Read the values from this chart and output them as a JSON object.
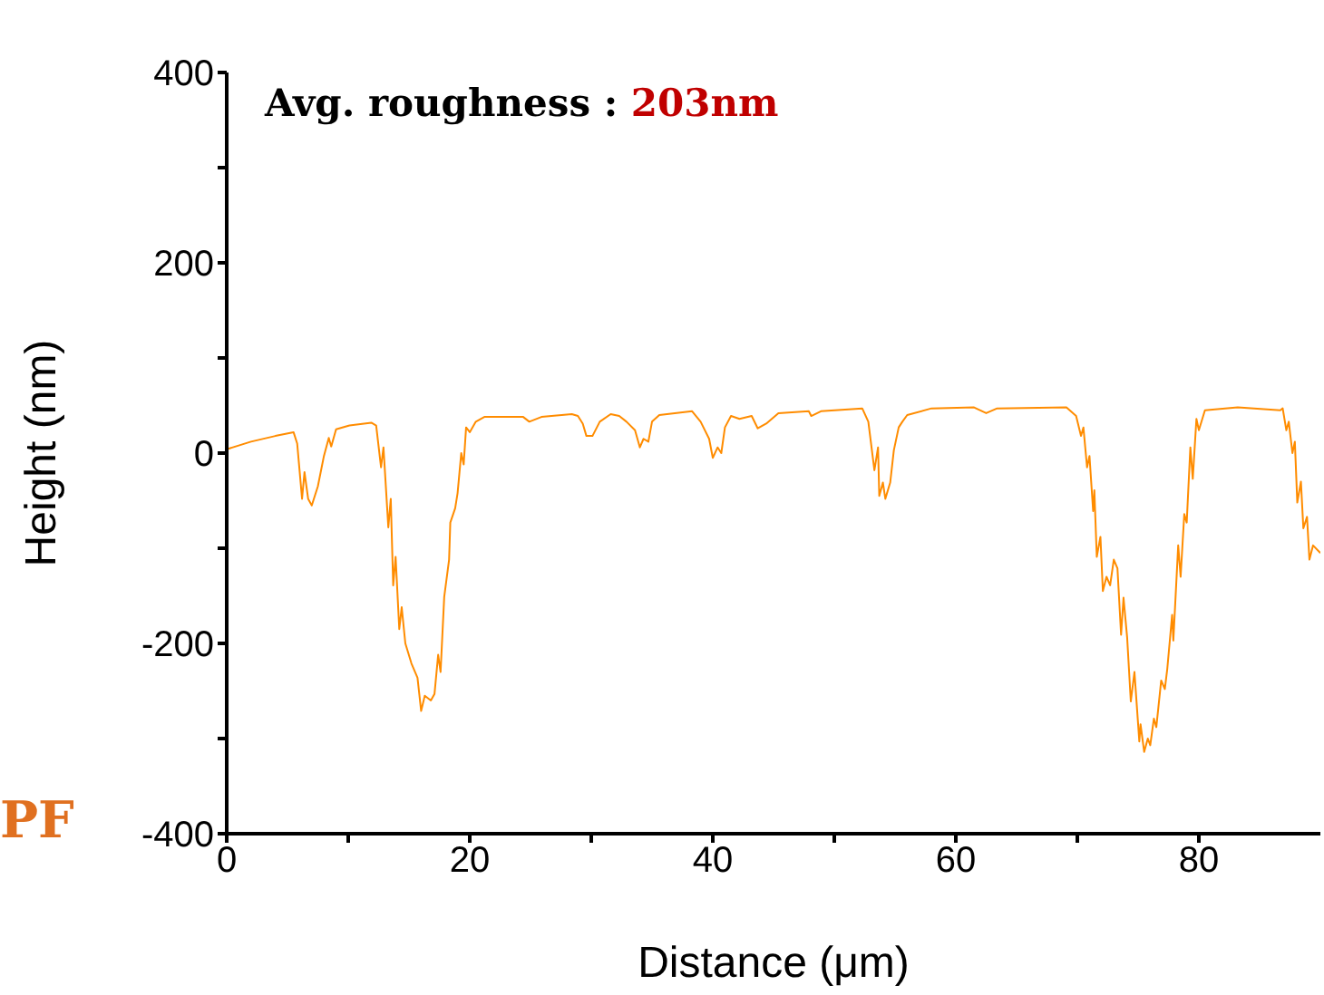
{
  "chart_data": {
    "type": "line",
    "xlabel": "Distance (μm)",
    "ylabel": "Height (nm)",
    "annotations": [
      "Avg. roughness :",
      "203nm",
      "PF"
    ],
    "xlim": [
      0,
      90
    ],
    "xticks": [
      0,
      {
        "value": 10,
        "label": null
      },
      20,
      {
        "value": 30,
        "label": null
      },
      40,
      {
        "value": 50,
        "label": null
      },
      60,
      {
        "value": 70,
        "label": null
      },
      80
    ],
    "ylim": [
      -400,
      400
    ],
    "yticks": [
      -400,
      {
        "value": -300,
        "label": null
      },
      -200,
      {
        "value": -100,
        "label": null
      },
      0,
      {
        "value": 100,
        "label": null
      },
      200,
      {
        "value": 300,
        "label": null
      },
      400
    ],
    "marker": "none",
    "line_style": "solid",
    "series": [
      {
        "color": "#ff8c00",
        "x": [
          0,
          2,
          4,
          5.5,
          5.8,
          6.2,
          6.4,
          6.7,
          7.0,
          7.5,
          8.0,
          8.4,
          8.6,
          9.0,
          10.1,
          11.9,
          12.3,
          12.7,
          12.9,
          13.3,
          13.5,
          13.7,
          13.9,
          14.2,
          14.4,
          14.7,
          15.2,
          15.7,
          16.0,
          16.3,
          16.8,
          17.1,
          17.4,
          17.6,
          17.9,
          18.3,
          18.4,
          18.8,
          19.0,
          19.3,
          19.5,
          19.7,
          20.0,
          20.5,
          21.2,
          24.4,
          24.9,
          25.9,
          28.4,
          28.9,
          29.3,
          29.6,
          30.1,
          30.7,
          31.6,
          32.3,
          32.9,
          33.6,
          34.0,
          34.3,
          34.7,
          35.0,
          35.6,
          38.3,
          39.0,
          39.7,
          40.0,
          40.4,
          40.7,
          41.0,
          41.5,
          42.2,
          43.2,
          43.7,
          44.4,
          45.4,
          47.9,
          48.1,
          48.9,
          52.3,
          52.8,
          53.3,
          53.6,
          53.7,
          54.0,
          54.2,
          54.6,
          54.9,
          55.3,
          55.6,
          56.0,
          58.0,
          61.5,
          62.5,
          63.4,
          69.1,
          69.9,
          70.3,
          70.5,
          70.8,
          71.0,
          71.3,
          71.4,
          71.6,
          71.9,
          72.1,
          72.4,
          72.7,
          73.0,
          73.3,
          73.6,
          73.8,
          74.1,
          74.4,
          74.7,
          75.1,
          75.2,
          75.5,
          75.8,
          76.0,
          76.3,
          76.5,
          76.9,
          77.2,
          77.4,
          77.8,
          77.9,
          78.3,
          78.5,
          78.8,
          79.0,
          79.3,
          79.5,
          79.8,
          80.0,
          80.5,
          83.2,
          86.7,
          86.9,
          87.2,
          87.4,
          87.7,
          87.9,
          88.1,
          88.4,
          88.6,
          88.9,
          89.1,
          89.4,
          90
        ],
        "values": [
          4,
          12,
          18,
          22,
          10,
          -48,
          -20,
          -48,
          -55,
          -35,
          -3,
          16,
          7,
          25,
          29,
          32,
          29,
          -15,
          6,
          -78,
          -48,
          -139,
          -109,
          -185,
          -162,
          -200,
          -221,
          -236,
          -271,
          -255,
          -260,
          -253,
          -212,
          -230,
          -151,
          -112,
          -73,
          -58,
          -42,
          0,
          -12,
          27,
          22,
          33,
          38,
          38,
          33,
          38,
          41,
          39,
          31,
          18,
          18,
          33,
          41,
          39,
          33,
          24,
          6,
          15,
          12,
          33,
          40,
          44,
          33,
          15,
          -5,
          6,
          0,
          27,
          39,
          36,
          39,
          26,
          31,
          42,
          44,
          39,
          44,
          47,
          33,
          -18,
          6,
          -45,
          -31,
          -48,
          -31,
          3,
          27,
          33,
          40,
          47,
          48,
          42,
          47,
          48,
          39,
          18,
          27,
          -15,
          -3,
          -61,
          -39,
          -109,
          -88,
          -145,
          -130,
          -139,
          -112,
          -121,
          -191,
          -152,
          -194,
          -261,
          -230,
          -303,
          -285,
          -314,
          -300,
          -307,
          -279,
          -288,
          -239,
          -248,
          -227,
          -170,
          -197,
          -97,
          -130,
          -64,
          -73,
          6,
          -27,
          36,
          24,
          45,
          48,
          45,
          47,
          24,
          33,
          0,
          12,
          -52,
          -30,
          -79,
          -67,
          -112,
          -97,
          -105
        ]
      }
    ]
  }
}
